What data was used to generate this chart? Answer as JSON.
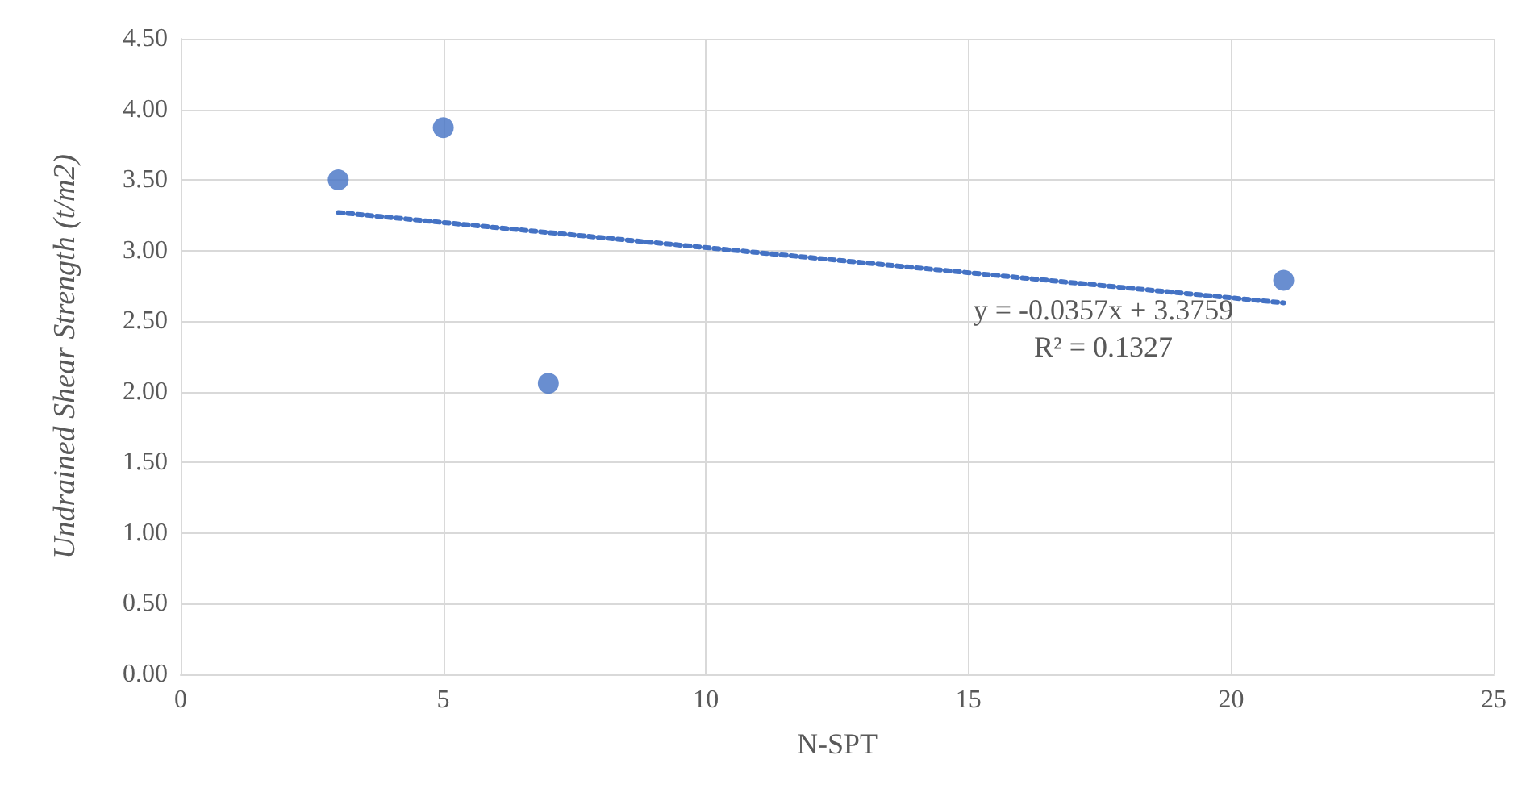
{
  "chart_data": {
    "type": "scatter",
    "xlabel": "N-SPT",
    "ylabel": "Undrained Shear Strength (t/m2)",
    "series": [
      {
        "color": "#4472c4",
        "x": [
          3,
          5,
          7,
          21
        ],
        "values": [
          3.5,
          3.87,
          2.06,
          2.79
        ],
        "marker": "circle"
      },
      {
        "type": "line",
        "color": "#4472c4",
        "x": [
          3,
          21
        ],
        "values": [
          3.27,
          2.63
        ],
        "line_style": "dotted",
        "marker": "none"
      }
    ],
    "annotations": [
      "y = -0.0357x + 3.3759",
      "R² = 0.1327"
    ],
    "xlim": [
      0,
      25
    ],
    "xticks": [
      0,
      5,
      10,
      15,
      20,
      25
    ],
    "ylim": [
      0,
      4.5
    ],
    "yticks": [
      {
        "value": 0,
        "label": "0.00"
      },
      {
        "value": 0.5,
        "label": "0.50"
      },
      {
        "value": 1,
        "label": "1.00"
      },
      {
        "value": 1.5,
        "label": "1.50"
      },
      {
        "value": 2,
        "label": "2.00"
      },
      {
        "value": 2.5,
        "label": "2.50"
      },
      {
        "value": 3,
        "label": "3.00"
      },
      {
        "value": 3.5,
        "label": "3.50"
      },
      {
        "value": 4,
        "label": "4.00"
      },
      {
        "value": 4.5,
        "label": "4.50"
      }
    ],
    "grid": true
  }
}
